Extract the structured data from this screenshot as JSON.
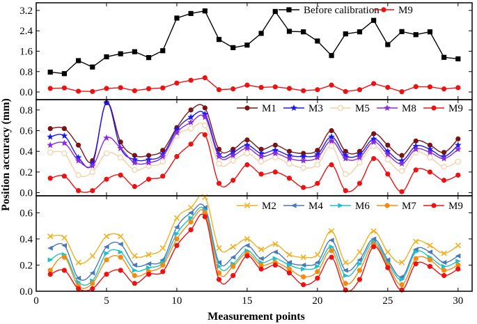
{
  "figure": {
    "xlabel": "Measurement points",
    "ylabel": "Position accuracy (mm)"
  },
  "chart_data": [
    {
      "type": "line",
      "panel": "top",
      "xlim": [
        0,
        31
      ],
      "ylim": [
        -0.3,
        3.5
      ],
      "yticks": [
        0.0,
        0.8,
        1.6,
        2.4,
        3.2
      ],
      "ytick_labels": [
        "0.0",
        "0.8",
        "1.6",
        "2.4",
        "3.2"
      ],
      "smooth": false,
      "legend": "top-right",
      "x": [
        1,
        2,
        3,
        4,
        5,
        6,
        7,
        8,
        9,
        10,
        11,
        12,
        13,
        14,
        15,
        16,
        17,
        18,
        19,
        20,
        21,
        22,
        23,
        24,
        25,
        26,
        27,
        28,
        29,
        30
      ],
      "series": [
        {
          "name": "Before calibration",
          "color": "#000000",
          "marker": "square",
          "values": [
            0.78,
            0.72,
            1.23,
            0.98,
            1.38,
            1.5,
            1.58,
            1.35,
            1.62,
            2.9,
            3.08,
            3.18,
            2.06,
            1.74,
            1.84,
            2.3,
            3.16,
            2.38,
            2.36,
            2.0,
            1.43,
            2.28,
            2.36,
            2.81,
            1.86,
            2.37,
            2.25,
            2.36,
            1.36,
            1.3
          ]
        },
        {
          "name": "M9",
          "color": "#ee1111",
          "marker": "circle",
          "values": [
            0.14,
            0.16,
            0.03,
            0.02,
            0.14,
            0.17,
            0.05,
            0.13,
            0.16,
            0.35,
            0.46,
            0.56,
            0.09,
            0.12,
            0.27,
            0.18,
            0.2,
            0.14,
            0.05,
            0.09,
            0.27,
            0.02,
            0.09,
            0.33,
            0.18,
            0.01,
            0.21,
            0.2,
            0.12,
            0.17
          ]
        }
      ]
    },
    {
      "type": "line",
      "panel": "middle",
      "xlim": [
        0,
        31
      ],
      "ylim": [
        -0.03,
        0.9
      ],
      "yticks": [
        0.0,
        0.2,
        0.4,
        0.6,
        0.8
      ],
      "ytick_labels": [
        "0.0",
        "0.2",
        "0.4",
        "0.6",
        "0.8"
      ],
      "smooth": true,
      "legend": "top-right",
      "x": [
        1,
        2,
        3,
        4,
        5,
        6,
        7,
        8,
        9,
        10,
        11,
        12,
        13,
        14,
        15,
        16,
        17,
        18,
        19,
        20,
        21,
        22,
        23,
        24,
        25,
        26,
        27,
        28,
        29,
        30
      ],
      "series": [
        {
          "name": "M1",
          "color": "#7a1414",
          "marker": "circle",
          "values": [
            0.62,
            0.62,
            0.46,
            0.31,
            0.87,
            0.49,
            0.36,
            0.36,
            0.41,
            0.63,
            0.8,
            0.82,
            0.42,
            0.42,
            0.51,
            0.42,
            0.46,
            0.4,
            0.38,
            0.41,
            0.6,
            0.4,
            0.4,
            0.57,
            0.46,
            0.36,
            0.5,
            0.46,
            0.39,
            0.52
          ]
        },
        {
          "name": "M3",
          "color": "#1a1af0",
          "marker": "star",
          "values": [
            0.54,
            0.55,
            0.34,
            0.28,
            0.87,
            0.43,
            0.32,
            0.32,
            0.37,
            0.61,
            0.73,
            0.76,
            0.37,
            0.39,
            0.46,
            0.38,
            0.41,
            0.36,
            0.35,
            0.37,
            0.54,
            0.36,
            0.37,
            0.52,
            0.4,
            0.31,
            0.45,
            0.42,
            0.35,
            0.46
          ]
        },
        {
          "name": "M5",
          "color": "#f5cfa6",
          "marker": "circle-open",
          "values": [
            0.39,
            0.38,
            0.17,
            0.2,
            0.38,
            0.34,
            0.22,
            0.26,
            0.3,
            0.55,
            0.62,
            0.65,
            0.28,
            0.31,
            0.38,
            0.3,
            0.34,
            0.28,
            0.24,
            0.27,
            0.45,
            0.18,
            0.29,
            0.45,
            0.32,
            0.21,
            0.39,
            0.34,
            0.25,
            0.3
          ]
        },
        {
          "name": "M8",
          "color": "#8a2be2",
          "marker": "star",
          "values": [
            0.46,
            0.48,
            0.31,
            0.26,
            0.53,
            0.43,
            0.29,
            0.29,
            0.35,
            0.58,
            0.68,
            0.73,
            0.35,
            0.36,
            0.43,
            0.35,
            0.38,
            0.33,
            0.31,
            0.34,
            0.5,
            0.33,
            0.34,
            0.49,
            0.37,
            0.28,
            0.42,
            0.39,
            0.33,
            0.42
          ]
        },
        {
          "name": "M9",
          "color": "#ee1111",
          "marker": "circle",
          "values": [
            0.14,
            0.16,
            0.02,
            0.02,
            0.13,
            0.17,
            0.06,
            0.13,
            0.16,
            0.35,
            0.47,
            0.56,
            0.09,
            0.12,
            0.27,
            0.18,
            0.2,
            0.14,
            0.05,
            0.09,
            0.27,
            0.02,
            0.09,
            0.33,
            0.18,
            0.01,
            0.22,
            0.2,
            0.12,
            0.17
          ]
        }
      ]
    },
    {
      "type": "line",
      "panel": "bottom",
      "xlim": [
        0,
        31
      ],
      "ylim": [
        0.0,
        0.73
      ],
      "yticks": [
        0.0,
        0.2,
        0.4,
        0.6
      ],
      "ytick_labels": [
        "0.0",
        "0.2",
        "0.4",
        "0.6"
      ],
      "xticks": [
        0,
        5,
        10,
        15,
        20,
        25,
        30
      ],
      "xtick_labels": [
        "0",
        "5",
        "10",
        "15",
        "20",
        "25",
        "30"
      ],
      "smooth": true,
      "legend": "top-right",
      "x": [
        1,
        2,
        3,
        4,
        5,
        6,
        7,
        8,
        9,
        10,
        11,
        12,
        13,
        14,
        15,
        16,
        17,
        18,
        19,
        20,
        21,
        22,
        23,
        24,
        25,
        26,
        27,
        28,
        29,
        30
      ],
      "series": [
        {
          "name": "M2",
          "color": "#f0b020",
          "marker": "x",
          "values": [
            0.42,
            0.41,
            0.22,
            0.27,
            0.42,
            0.42,
            0.27,
            0.28,
            0.33,
            0.56,
            0.64,
            0.72,
            0.33,
            0.34,
            0.4,
            0.32,
            0.36,
            0.28,
            0.26,
            0.28,
            0.46,
            0.22,
            0.3,
            0.46,
            0.3,
            0.22,
            0.38,
            0.35,
            0.29,
            0.35
          ]
        },
        {
          "name": "M4",
          "color": "#4a78b8",
          "marker": "triangle-left",
          "values": [
            0.33,
            0.35,
            0.1,
            0.14,
            0.34,
            0.36,
            0.2,
            0.21,
            0.24,
            0.49,
            0.6,
            0.64,
            0.22,
            0.26,
            0.35,
            0.25,
            0.3,
            0.22,
            0.2,
            0.22,
            0.39,
            0.16,
            0.24,
            0.4,
            0.24,
            0.11,
            0.32,
            0.3,
            0.22,
            0.27
          ]
        },
        {
          "name": "M6",
          "color": "#20c0c8",
          "marker": "triangle-right",
          "values": [
            0.24,
            0.28,
            0.07,
            0.08,
            0.29,
            0.3,
            0.16,
            0.18,
            0.22,
            0.44,
            0.56,
            0.62,
            0.19,
            0.21,
            0.31,
            0.22,
            0.25,
            0.2,
            0.17,
            0.19,
            0.34,
            0.12,
            0.21,
            0.38,
            0.22,
            0.09,
            0.3,
            0.26,
            0.19,
            0.23
          ]
        },
        {
          "name": "M7",
          "color": "#f28c10",
          "marker": "circle",
          "values": [
            0.16,
            0.26,
            0.04,
            0.06,
            0.24,
            0.26,
            0.12,
            0.15,
            0.2,
            0.4,
            0.53,
            0.6,
            0.14,
            0.19,
            0.29,
            0.2,
            0.22,
            0.17,
            0.11,
            0.15,
            0.31,
            0.06,
            0.16,
            0.36,
            0.2,
            0.05,
            0.25,
            0.24,
            0.16,
            0.2
          ]
        },
        {
          "name": "M9",
          "color": "#ee1111",
          "marker": "circle",
          "values": [
            0.13,
            0.16,
            0.02,
            0.02,
            0.13,
            0.16,
            0.06,
            0.13,
            0.15,
            0.35,
            0.47,
            0.57,
            0.09,
            0.12,
            0.27,
            0.17,
            0.2,
            0.14,
            0.05,
            0.1,
            0.26,
            0.01,
            0.09,
            0.34,
            0.18,
            0.01,
            0.21,
            0.19,
            0.12,
            0.17
          ]
        }
      ]
    }
  ]
}
